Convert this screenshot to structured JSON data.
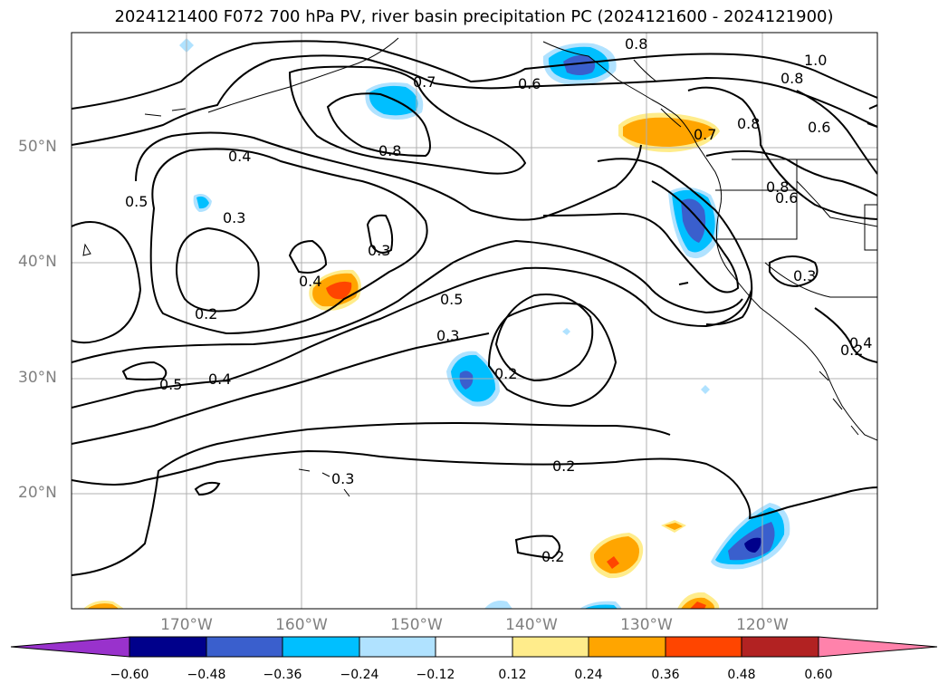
{
  "title": "2024121400 F072 700 hPa PV, river basin precipitation PC (2024121600 - 2024121900)",
  "lat_labels": [
    "50°N",
    "40°N",
    "30°N",
    "20°N"
  ],
  "lon_labels": [
    "170°W",
    "160°W",
    "150°W",
    "140°W",
    "130°W",
    "120°W"
  ],
  "contour_labels": [
    "0.8",
    "0.7",
    "0.6",
    "0.8",
    "1.0",
    "0.8",
    "0.8",
    "0.6",
    "0.7",
    "0.4",
    "0.8",
    "0.5",
    "0.3",
    "0.6",
    "0.3",
    "0.4",
    "0.5",
    "0.3",
    "0.2",
    "0.3",
    "0.2",
    "0.5",
    "0.4",
    "0.2",
    "0.3",
    "0.2",
    "0.2",
    "0.4"
  ],
  "colorbar": {
    "ticks": [
      "−0.60",
      "−0.48",
      "−0.36",
      "−0.24",
      "−0.12",
      "0.12",
      "0.24",
      "0.36",
      "0.48",
      "0.60"
    ],
    "colors": [
      "#9932cc",
      "#00008b",
      "#3a5fcd",
      "#00bfff",
      "#b0e2ff",
      "#ffffff",
      "#ffec8b",
      "#ffa500",
      "#ff4500",
      "#b22222",
      "#ff82ab"
    ]
  }
}
